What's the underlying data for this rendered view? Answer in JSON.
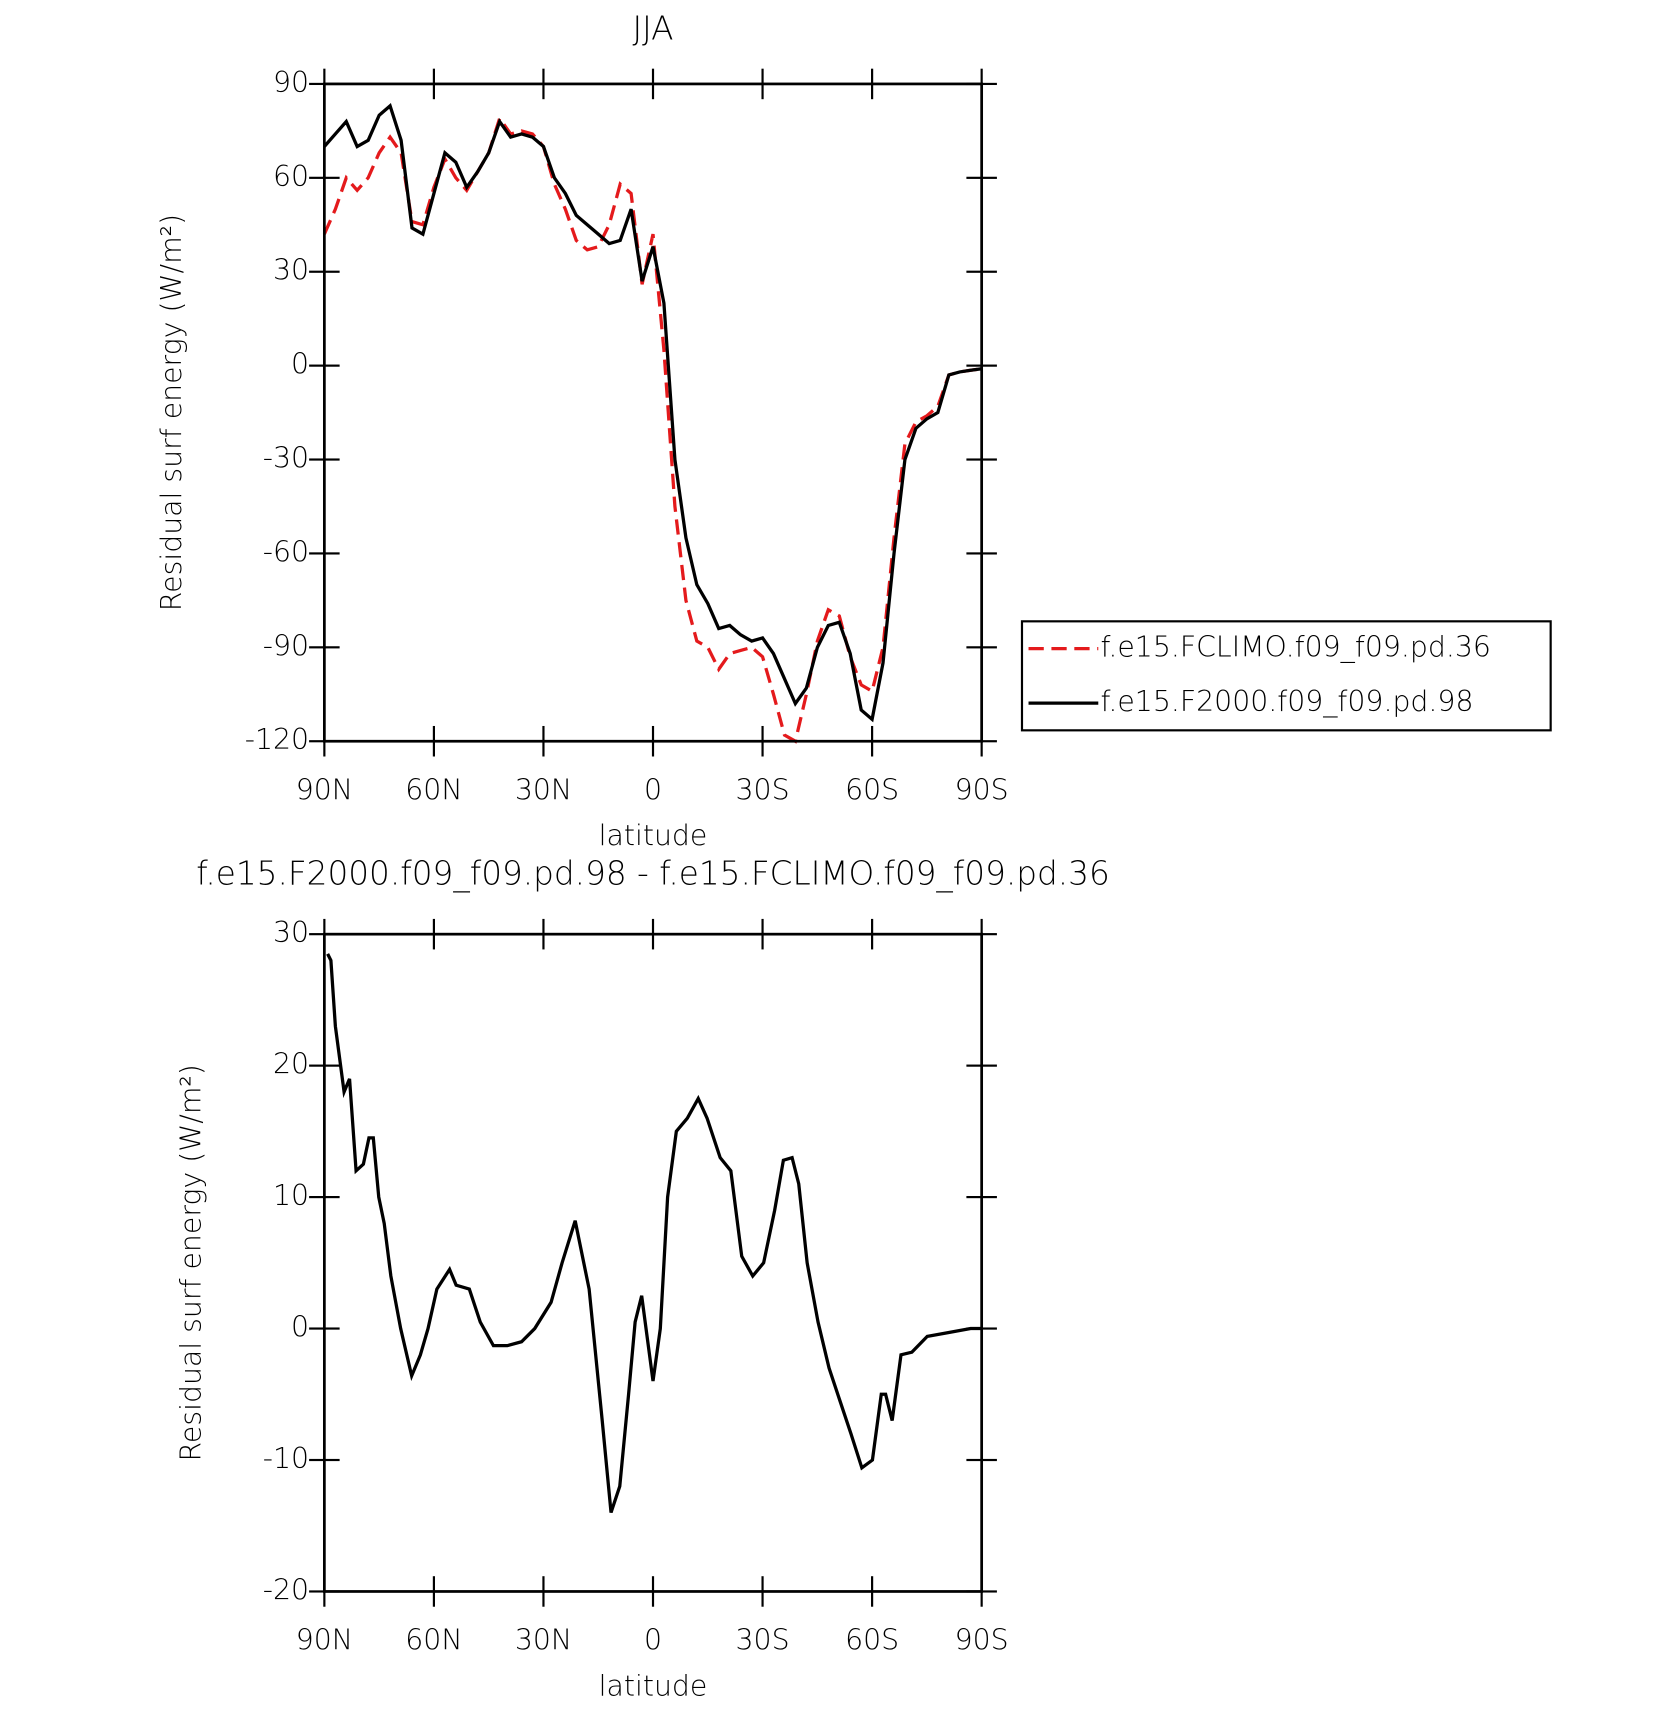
{
  "chart_data": [
    {
      "type": "line",
      "title": "JJA",
      "xlabel": "latitude",
      "ylabel": "Residual surf energy (W/m²)",
      "x": [
        90,
        87,
        84,
        81,
        78,
        75,
        72,
        69,
        66,
        63,
        60,
        57,
        54,
        51,
        48,
        45,
        42,
        39,
        36,
        33,
        30,
        27,
        24,
        21,
        18,
        15,
        12,
        9,
        6,
        3,
        0,
        -3,
        -6,
        -9,
        -12,
        -15,
        -18,
        -21,
        -24,
        -27,
        -30,
        -33,
        -36,
        -39,
        -42,
        -45,
        -48,
        -51,
        -54,
        -57,
        -60,
        -63,
        -66,
        -69,
        -72,
        -75,
        -78,
        -81,
        -84,
        -87,
        -90
      ],
      "series": [
        {
          "name": "f.e15.FCLIMO.f09_f09.pd.36",
          "color": "#e41a1c",
          "line_style": "dashed",
          "values": [
            42,
            50,
            60,
            56,
            60,
            68,
            73,
            68,
            46,
            45,
            57,
            66,
            60,
            56,
            62,
            68,
            79,
            74,
            75,
            74,
            70,
            58,
            50,
            40,
            37,
            38,
            45,
            58,
            55,
            26,
            42,
            5,
            -45,
            -75,
            -88,
            -90,
            -97,
            -92,
            -91,
            -90,
            -93,
            -105,
            -118,
            -120,
            -105,
            -88,
            -78,
            -80,
            -93,
            -102,
            -104,
            -90,
            -55,
            -25,
            -18,
            -16,
            -13,
            -3,
            -2,
            -1.5,
            -1
          ]
        },
        {
          "name": "f.e15.F2000.f09_f09.pd.98",
          "color": "#000000",
          "line_style": "solid",
          "values": [
            70,
            74,
            78,
            70,
            72,
            80,
            83,
            72,
            44,
            42,
            55,
            68,
            65,
            57,
            62,
            68,
            78,
            73,
            74,
            73,
            70,
            60,
            55,
            48,
            45,
            42,
            39,
            40,
            50,
            27,
            38,
            20,
            -30,
            -55,
            -70,
            -76,
            -84,
            -83,
            -86,
            -88,
            -87,
            -92,
            -100,
            -108,
            -103,
            -90,
            -83,
            -82,
            -92,
            -110,
            -113,
            -95,
            -60,
            -30,
            -20,
            -17,
            -15,
            -3,
            -2,
            -1.5,
            -1
          ]
        }
      ],
      "xlim": [
        90,
        -90
      ],
      "xticks": [
        {
          "value": 90,
          "label": "90N"
        },
        {
          "value": 60,
          "label": "60N"
        },
        {
          "value": 30,
          "label": "30N"
        },
        0,
        {
          "value": -30,
          "label": "30S"
        },
        {
          "value": -60,
          "label": "60S"
        },
        {
          "value": -90,
          "label": "90S"
        }
      ],
      "ylim": [
        -120,
        90
      ],
      "yticks": [
        -120,
        -90,
        -60,
        -30,
        0,
        30,
        60,
        90
      ],
      "legend": "right"
    },
    {
      "type": "line",
      "title": "f.e15.F2000.f09_f09.pd.98 - f.e15.FCLIMO.f09_f09.pd.36",
      "xlabel": "latitude",
      "ylabel": "Residual surf energy (W/m²)",
      "x": [
        89.1,
        88.2,
        87.0,
        84.6,
        83.1,
        81.3,
        79.3,
        77.8,
        76.6,
        75.1,
        73.6,
        71.8,
        69.1,
        66.1,
        63.7,
        61.6,
        59.2,
        55.7,
        53.9,
        50.3,
        47.3,
        43.7,
        39.9,
        36.0,
        32.4,
        27.9,
        24.9,
        21.3,
        17.5,
        13.9,
        11.5,
        9.1,
        6.7,
        4.9,
        3.1,
        0,
        -2.0,
        -4.0,
        -6.4,
        -9.4,
        -12.4,
        -14.8,
        -18.4,
        -21.3,
        -24.3,
        -27.3,
        -30.3,
        -33.3,
        -35.7,
        -38.1,
        -39.9,
        -42.2,
        -45.2,
        -48.2,
        -51.2,
        -54.2,
        -57.2,
        -60.1,
        -62.5,
        -63.7,
        -65.5,
        -67.9,
        -70.9,
        -75.1,
        -81.0,
        -87.0,
        -90
      ],
      "series": [
        {
          "name": "difference",
          "color": "#000000",
          "line_style": "solid",
          "values": [
            28.5,
            28,
            23,
            18,
            19,
            12,
            12.5,
            14.5,
            14.5,
            10,
            8,
            4,
            0,
            -3.6,
            -2,
            0,
            3,
            4.5,
            3.3,
            3,
            0.5,
            -1.3,
            -1.3,
            -1,
            0,
            2,
            5,
            8.2,
            3,
            -7,
            -14,
            -12,
            -5,
            0.5,
            2.5,
            -4,
            0,
            10,
            15,
            16,
            17.5,
            16,
            13,
            12,
            5.5,
            4,
            5,
            9,
            12.8,
            13,
            11,
            5,
            0.5,
            -3,
            -5.5,
            -8,
            -10.6,
            -10,
            -5,
            -5,
            -7,
            -2,
            -1.8,
            -0.6,
            -0.3,
            0,
            0
          ]
        }
      ],
      "xlim": [
        90,
        -90
      ],
      "xticks": [
        {
          "value": 90,
          "label": "90N"
        },
        {
          "value": 60,
          "label": "60N"
        },
        {
          "value": 30,
          "label": "30N"
        },
        0,
        {
          "value": -30,
          "label": "30S"
        },
        {
          "value": -60,
          "label": "60S"
        },
        {
          "value": -90,
          "label": "90S"
        }
      ],
      "ylim": [
        -20,
        30
      ],
      "yticks": [
        -20,
        -10,
        0,
        10,
        20,
        30
      ]
    }
  ]
}
